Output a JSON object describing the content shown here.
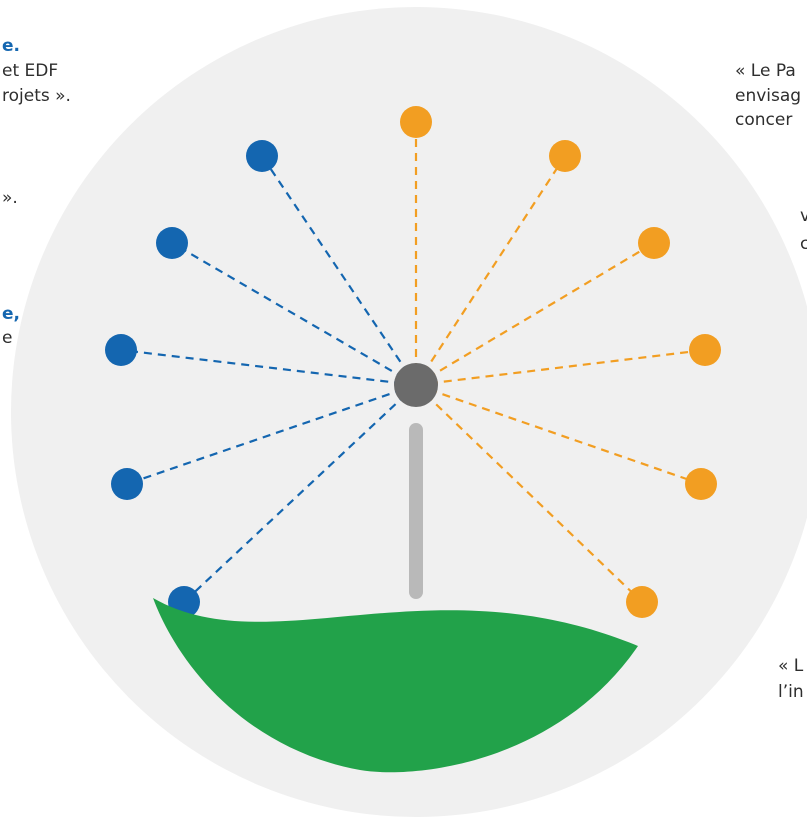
{
  "colors": {
    "background_circle": "#f0f0f0",
    "blue": "#1466b0",
    "orange": "#f29e22",
    "hub": "#6b6b6b",
    "stem": "#b9b9b9",
    "leaf": "#22a24a",
    "text": "#2e2e2e"
  },
  "left_text": {
    "line1": "e.",
    "line2": "et EDF",
    "line3": "rojets ».",
    "line4": "».",
    "line5": "e,",
    "line6": "e"
  },
  "right_text": {
    "line1": "« Le Pa",
    "line2": "envisag",
    "line3": "concer",
    "line4": "v",
    "line5": "c",
    "line6": "« L",
    "line7": "l’in"
  }
}
